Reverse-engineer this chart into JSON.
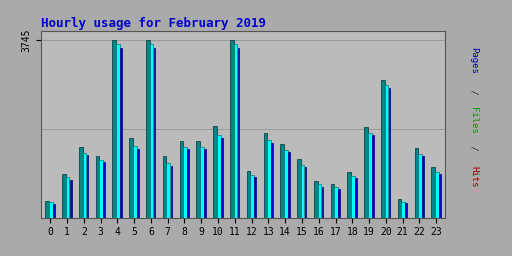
{
  "title": "Hourly usage for February 2019",
  "ytick_label": "3745",
  "hours": [
    0,
    1,
    2,
    3,
    4,
    5,
    6,
    7,
    8,
    9,
    10,
    11,
    12,
    13,
    14,
    15,
    16,
    17,
    18,
    19,
    20,
    21,
    22,
    23
  ],
  "hits": [
    350,
    920,
    1490,
    1310,
    3745,
    1690,
    3745,
    1310,
    1610,
    1630,
    1930,
    3745,
    990,
    1790,
    1565,
    1245,
    765,
    715,
    965,
    1925,
    2910,
    385,
    1465,
    1065
  ],
  "pages": [
    320,
    850,
    1370,
    1220,
    3660,
    1520,
    3660,
    1160,
    1490,
    1495,
    1740,
    3660,
    910,
    1635,
    1430,
    1110,
    700,
    650,
    880,
    1790,
    2795,
    340,
    1350,
    960
  ],
  "files": [
    290,
    800,
    1320,
    1170,
    3590,
    1460,
    3590,
    1100,
    1440,
    1445,
    1680,
    3590,
    860,
    1580,
    1380,
    1060,
    650,
    600,
    830,
    1740,
    2750,
    300,
    1310,
    920
  ],
  "color_teal": "#008888",
  "color_cyan": "#00ffff",
  "color_blue": "#0000cc",
  "bg_color": "#aaaaaa",
  "plot_bg": "#bbbbbb",
  "title_color": "#0000cc",
  "ylabel_color_pages": "#0000aa",
  "ylabel_color_files": "#009900",
  "ylabel_color_hits": "#990000",
  "ylim_max": 3745,
  "grid_color": "#999999"
}
